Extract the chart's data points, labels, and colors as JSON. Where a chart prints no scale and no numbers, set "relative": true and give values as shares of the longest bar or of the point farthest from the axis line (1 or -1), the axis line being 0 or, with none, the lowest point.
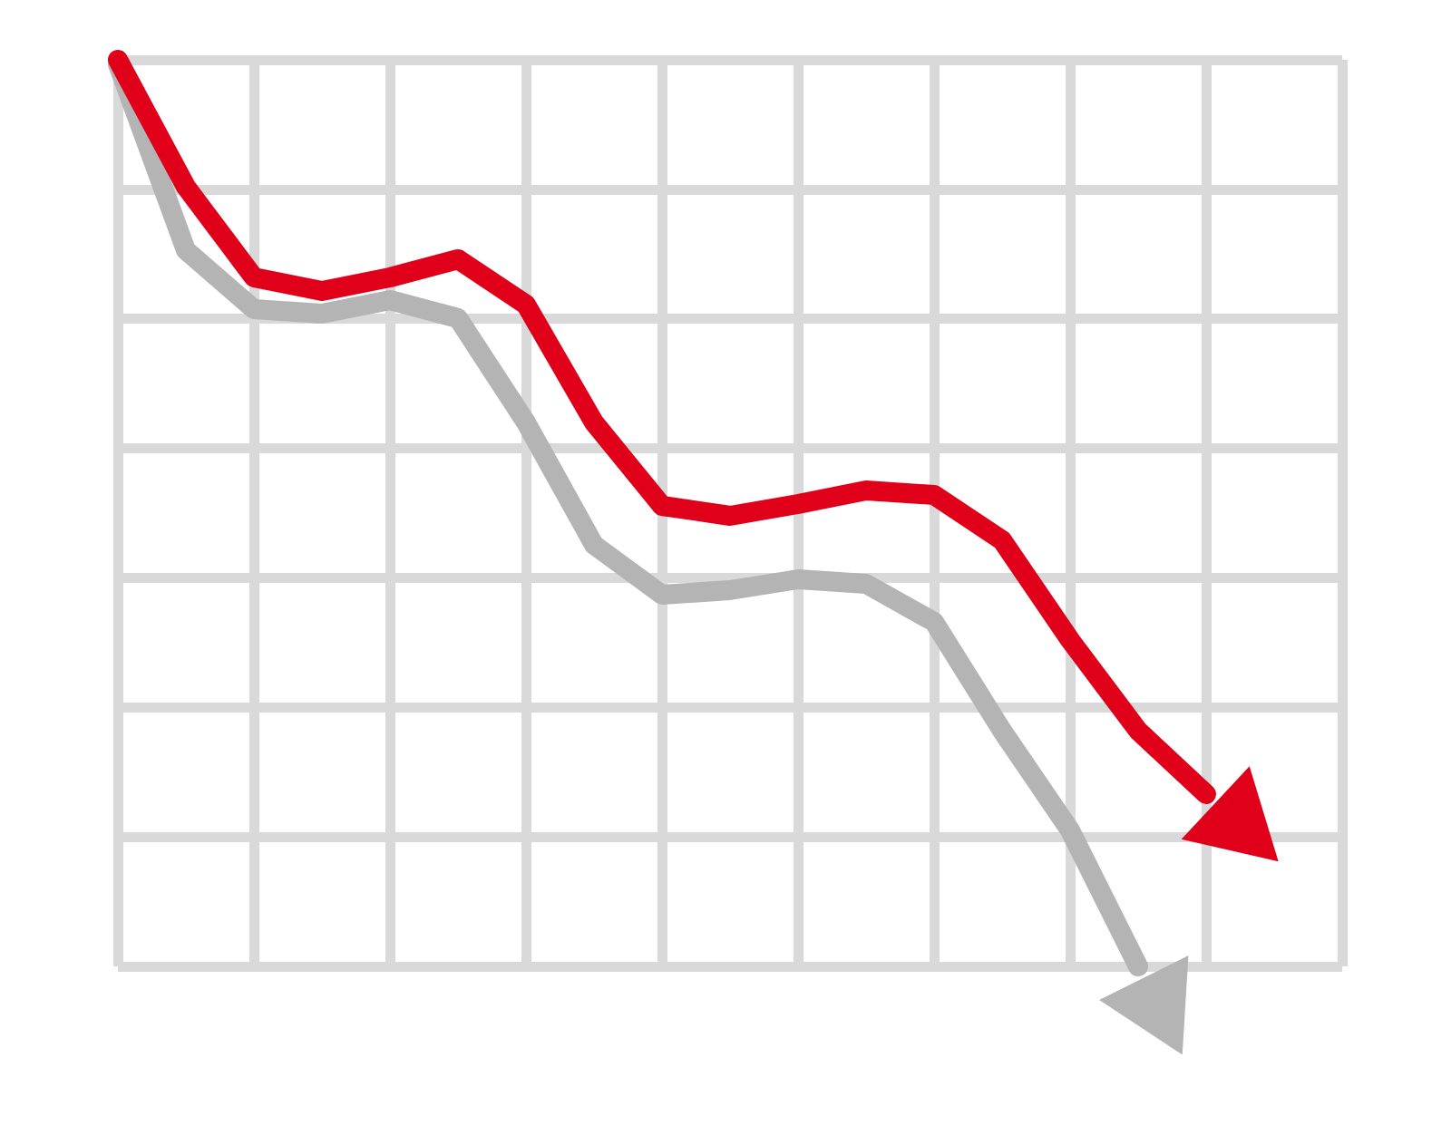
{
  "chart_data": {
    "type": "line",
    "relative": true,
    "grid": true,
    "line_style": "solid",
    "categories": [
      null,
      null,
      null,
      null,
      null,
      null,
      null,
      null,
      null,
      null,
      null,
      null,
      null,
      null,
      null,
      null,
      null,
      null,
      null
    ],
    "series": [
      {
        "color": "#b4b4b4",
        "values": [
          0.995,
          0.79,
          0.725,
          0.72,
          0.735,
          0.715,
          0.6,
          0.465,
          0.41,
          0.415,
          0.427,
          0.422,
          0.38,
          0.26,
          0.15,
          0,
          null,
          null,
          null
        ]
      },
      {
        "color": "#e0001a",
        "values": [
          1,
          0.86,
          0.76,
          0.745,
          0.76,
          0.78,
          0.73,
          0.6,
          0.508,
          0.497,
          0.51,
          0.525,
          0.52,
          0.47,
          0.36,
          0.26,
          0.19,
          null,
          null
        ]
      }
    ]
  }
}
